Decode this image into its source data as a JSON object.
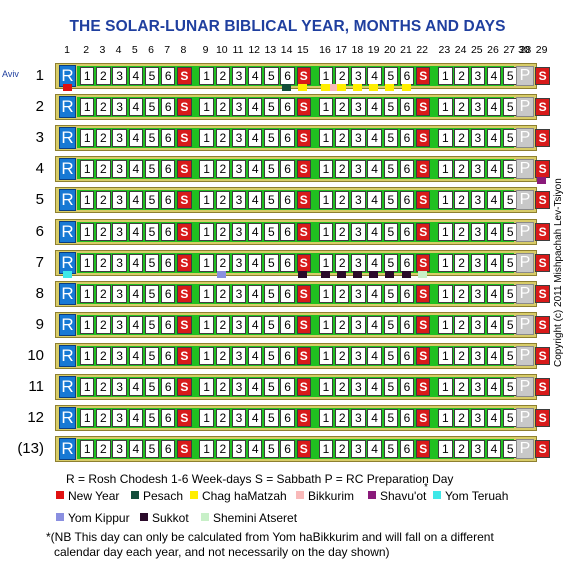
{
  "title": "THE SOLAR-LUNAR BIBLICAL YEAR, MONTHS AND DAYS",
  "day_numbers": [
    "1",
    "2",
    "3",
    "4",
    "5",
    "6",
    "7",
    "8",
    "9",
    "10",
    "11",
    "12",
    "13",
    "14",
    "15",
    "16",
    "17",
    "18",
    "19",
    "20",
    "21",
    "22",
    "23",
    "24",
    "25",
    "26",
    "27",
    "28",
    "29",
    "30"
  ],
  "first_month_name": "Aviv",
  "months": [
    {
      "label": "1",
      "markers": [
        {
          "day": 1,
          "color": "#e01010"
        },
        {
          "day": 14,
          "color": "#134d3a"
        },
        {
          "day": 15,
          "color": "#ffee00"
        },
        {
          "day": 16,
          "color": "#ffee00"
        },
        {
          "day": 16,
          "color": "#f9b9b9",
          "sub": true
        },
        {
          "day": 17,
          "color": "#ffee00"
        },
        {
          "day": 18,
          "color": "#ffee00"
        },
        {
          "day": 19,
          "color": "#ffee00"
        },
        {
          "day": 20,
          "color": "#ffee00"
        },
        {
          "day": 21,
          "color": "#ffee00"
        }
      ]
    },
    {
      "label": "2",
      "markers": []
    },
    {
      "label": "3",
      "markers": []
    },
    {
      "label": "4",
      "markers": [
        {
          "day": 29,
          "color": "#8a1a7a"
        }
      ]
    },
    {
      "label": "5",
      "markers": []
    },
    {
      "label": "6",
      "markers": []
    },
    {
      "label": "7",
      "markers": [
        {
          "day": 1,
          "color": "#3ee8e8"
        },
        {
          "day": 10,
          "color": "#8a8fe0"
        },
        {
          "day": 15,
          "color": "#2a0a2a"
        },
        {
          "day": 16,
          "color": "#2a0a2a"
        },
        {
          "day": 17,
          "color": "#2a0a2a"
        },
        {
          "day": 18,
          "color": "#2a0a2a"
        },
        {
          "day": 19,
          "color": "#2a0a2a"
        },
        {
          "day": 20,
          "color": "#2a0a2a"
        },
        {
          "day": 21,
          "color": "#2a0a2a"
        },
        {
          "day": 22,
          "color": "#c8f0c8"
        }
      ]
    },
    {
      "label": "8",
      "markers": []
    },
    {
      "label": "9",
      "markers": []
    },
    {
      "label": "10",
      "markers": []
    },
    {
      "label": "11",
      "markers": []
    },
    {
      "label": "12",
      "markers": []
    },
    {
      "label": "(13)",
      "markers": []
    }
  ],
  "cells": {
    "rosh_chodesh": "R",
    "week": [
      [
        "1",
        "2",
        "3",
        "4",
        "5",
        "6",
        "S"
      ],
      [
        "1",
        "2",
        "3",
        "4",
        "5",
        "6",
        "S"
      ],
      [
        "1",
        "2",
        "3",
        "4",
        "5",
        "6",
        "S"
      ],
      [
        "1",
        "2",
        "3",
        "4",
        "5",
        "6",
        "S"
      ]
    ],
    "preparation": "P"
  },
  "legend": {
    "key_line": "R = Rosh Chodesh   1-6 Week-days   S = Sabbath   P = RC Preparation Day",
    "items": [
      {
        "label": "New Year",
        "color": "#e01010"
      },
      {
        "label": "Pesach",
        "color": "#134d3a"
      },
      {
        "label": "Chag haMatzah",
        "color": "#ffee00"
      },
      {
        "label": "Bikkurim",
        "color": "#f9b9b9"
      },
      {
        "label": "Shavu'ot",
        "color": "#8a1a7a"
      },
      {
        "label": "Yom Teruah",
        "color": "#3ee8e8"
      },
      {
        "label": "Yom Kippur",
        "color": "#8a8fe0"
      },
      {
        "label": "Sukkot",
        "color": "#2a0a2a"
      },
      {
        "label": "Shemini Atseret",
        "color": "#c8f0c8"
      }
    ],
    "asterisk": "*"
  },
  "note_line1": "*(NB This day can only be calculated from Yom haBikkurim and will fall on a different",
  "note_line2": "calendar day each year, and not necessarily on the day shown)",
  "copyright": "Copyright (c) 2011 Mishpachah Lev-Tsiyon"
}
